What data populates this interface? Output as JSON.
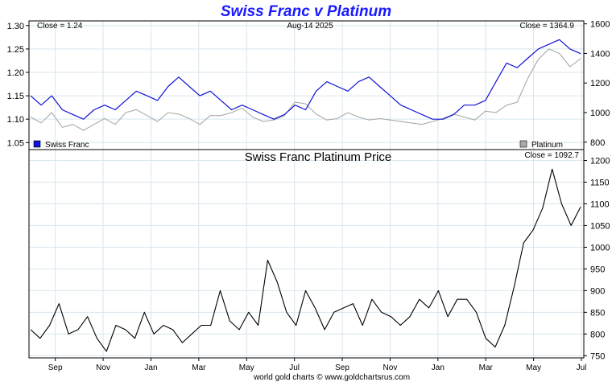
{
  "title": "Swiss Franc v Platinum",
  "footer": "world gold charts © www.goldchartsrus.com",
  "colors": {
    "title": "#1a1aff",
    "franc": "#1212d6",
    "platinum": "#aaaaaa",
    "ratio": "#000000",
    "grid": "#d8e6ee",
    "frame": "#000000"
  },
  "x_ticks": [
    "Sep",
    "Nov",
    "Jan",
    "Mar",
    "May",
    "Jul",
    "Sep",
    "Nov",
    "Jan",
    "Mar",
    "May",
    "Jul"
  ],
  "chart_data": [
    {
      "type": "line",
      "title": "",
      "top_left_label": "Close = 1.24",
      "top_center_label": "Aug-14  2025",
      "top_right_label": "Close = 1364.9",
      "grid": true,
      "legend_position": "bottom",
      "x_start": "2023-08",
      "x_end": "2025-08-14",
      "y_left": {
        "ticks": [
          "1.30",
          "1.25",
          "1.20",
          "1.15",
          "1.10",
          "1.05"
        ],
        "ylim": [
          1.035,
          1.31
        ]
      },
      "y_right": {
        "ticks": [
          "1600",
          "1400",
          "1200",
          "1000",
          "800"
        ],
        "ylim": [
          750,
          1620
        ]
      },
      "series": [
        {
          "name": "Swiss Franc",
          "axis": "left",
          "values": [
            1.15,
            1.13,
            1.15,
            1.12,
            1.11,
            1.1,
            1.12,
            1.13,
            1.12,
            1.14,
            1.16,
            1.15,
            1.14,
            1.17,
            1.19,
            1.17,
            1.15,
            1.16,
            1.14,
            1.12,
            1.13,
            1.12,
            1.11,
            1.1,
            1.11,
            1.13,
            1.12,
            1.16,
            1.18,
            1.17,
            1.16,
            1.18,
            1.19,
            1.17,
            1.15,
            1.13,
            1.12,
            1.11,
            1.1,
            1.1,
            1.11,
            1.13,
            1.13,
            1.14,
            1.18,
            1.22,
            1.21,
            1.23,
            1.25,
            1.26,
            1.27,
            1.25,
            1.24
          ]
        },
        {
          "name": "Platinum",
          "axis": "right",
          "values": [
            970,
            930,
            1000,
            900,
            920,
            880,
            920,
            960,
            920,
            1000,
            1020,
            980,
            940,
            1000,
            990,
            960,
            920,
            980,
            980,
            1000,
            1030,
            970,
            940,
            950,
            980,
            1070,
            1060,
            990,
            950,
            960,
            1000,
            970,
            950,
            960,
            950,
            940,
            930,
            920,
            940,
            960,
            990,
            970,
            950,
            1010,
            1000,
            1050,
            1070,
            1230,
            1360,
            1430,
            1400,
            1310,
            1365
          ]
        }
      ]
    },
    {
      "type": "line",
      "title": "Swiss Franc Platinum Price",
      "top_right_label": "Close = 1092.7",
      "grid": true,
      "y_right": {
        "ticks": [
          "1200",
          "1150",
          "1100",
          "1050",
          "1000",
          "950",
          "900",
          "850",
          "800",
          "750"
        ],
        "ylim": [
          745,
          1225
        ]
      },
      "series": [
        {
          "values": [
            810,
            790,
            820,
            870,
            800,
            810,
            840,
            790,
            760,
            820,
            810,
            790,
            850,
            800,
            820,
            810,
            780,
            800,
            820,
            820,
            900,
            830,
            810,
            850,
            820,
            970,
            920,
            850,
            820,
            900,
            860,
            810,
            850,
            860,
            870,
            820,
            880,
            850,
            840,
            820,
            840,
            880,
            860,
            900,
            840,
            880,
            880,
            850,
            790,
            770,
            820,
            910,
            1010,
            1040,
            1090,
            1180,
            1100,
            1050,
            1093
          ]
        }
      ]
    }
  ]
}
